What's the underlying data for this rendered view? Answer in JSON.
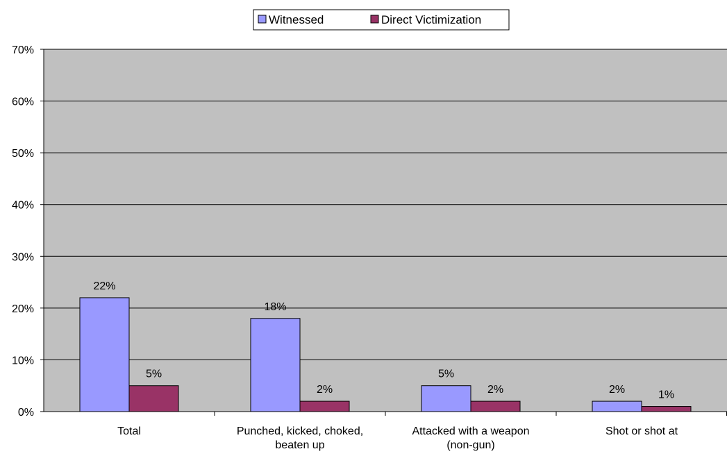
{
  "chart_data": {
    "type": "bar",
    "categories": [
      [
        "Total"
      ],
      [
        "Punched, kicked, choked,",
        "beaten up"
      ],
      [
        "Attacked with a weapon",
        "(non-gun)"
      ],
      [
        "Shot or shot at"
      ]
    ],
    "series": [
      {
        "name": "Witnessed",
        "values": [
          22,
          18,
          5,
          2
        ],
        "labels": [
          "22%",
          "18%",
          "5%",
          "2%"
        ],
        "color": "#9999ff"
      },
      {
        "name": "Direct Victimization",
        "values": [
          5,
          2,
          2,
          1
        ],
        "labels": [
          "5%",
          "2%",
          "2%",
          "1%"
        ],
        "color": "#993366"
      }
    ],
    "y_ticks": [
      "0%",
      "10%",
      "20%",
      "30%",
      "40%",
      "50%",
      "60%",
      "70%"
    ],
    "ylim": [
      0,
      70
    ],
    "ystep": 10,
    "grid": true,
    "plot_background": "#c0c0c0",
    "legend_position": "top-center",
    "title": "",
    "xlabel": "",
    "ylabel": ""
  }
}
